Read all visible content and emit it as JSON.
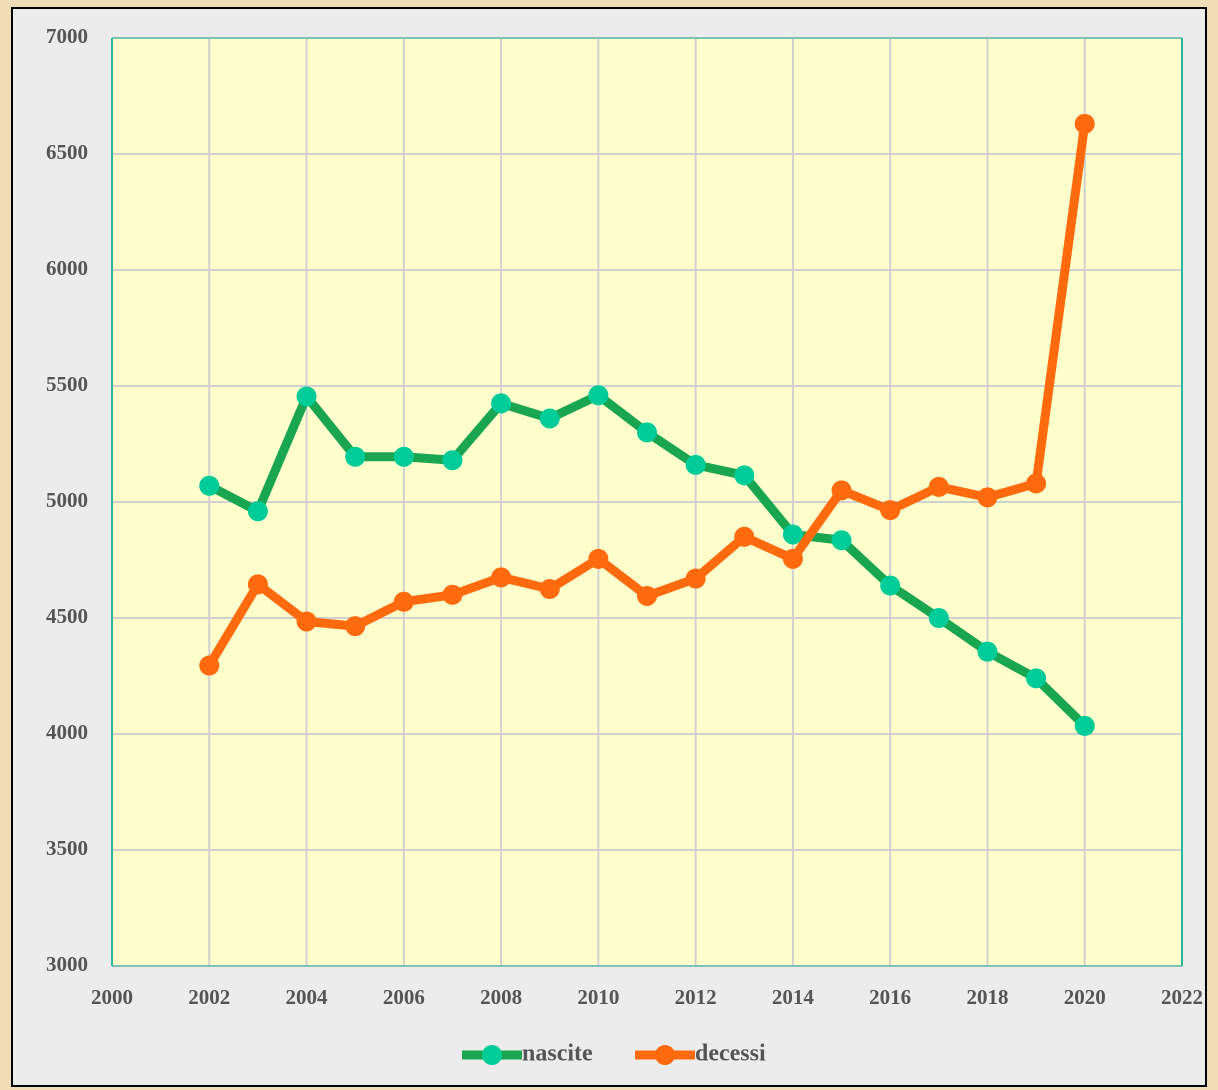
{
  "chart_data": {
    "type": "line",
    "x": [
      2002,
      2003,
      2004,
      2005,
      2006,
      2007,
      2008,
      2009,
      2010,
      2011,
      2012,
      2013,
      2014,
      2015,
      2016,
      2017,
      2018,
      2019,
      2020
    ],
    "series": [
      {
        "name": "nascite",
        "color": "#1aa550",
        "marker_color": "#00cc99",
        "values": [
          5070,
          4960,
          5455,
          5195,
          5195,
          5180,
          5425,
          5360,
          5460,
          5300,
          5160,
          5115,
          4860,
          4835,
          4640,
          4500,
          4355,
          4240,
          4035
        ]
      },
      {
        "name": "decessi",
        "color": "#ff6a0e",
        "marker_color": "#ff6a0e",
        "values": [
          4295,
          4645,
          4485,
          4465,
          4570,
          4600,
          4675,
          4625,
          4755,
          4595,
          4670,
          4850,
          4755,
          5050,
          4965,
          5065,
          5020,
          5080,
          6630
        ]
      }
    ],
    "xlim": [
      2000,
      2022
    ],
    "xticks": [
      2000,
      2002,
      2004,
      2006,
      2008,
      2010,
      2012,
      2014,
      2016,
      2018,
      2020,
      2022
    ],
    "ylim": [
      3000,
      7000
    ],
    "yticks": [
      3000,
      3500,
      4000,
      4500,
      5000,
      5500,
      6000,
      6500,
      7000
    ],
    "grid": true,
    "legend": "bottom"
  }
}
